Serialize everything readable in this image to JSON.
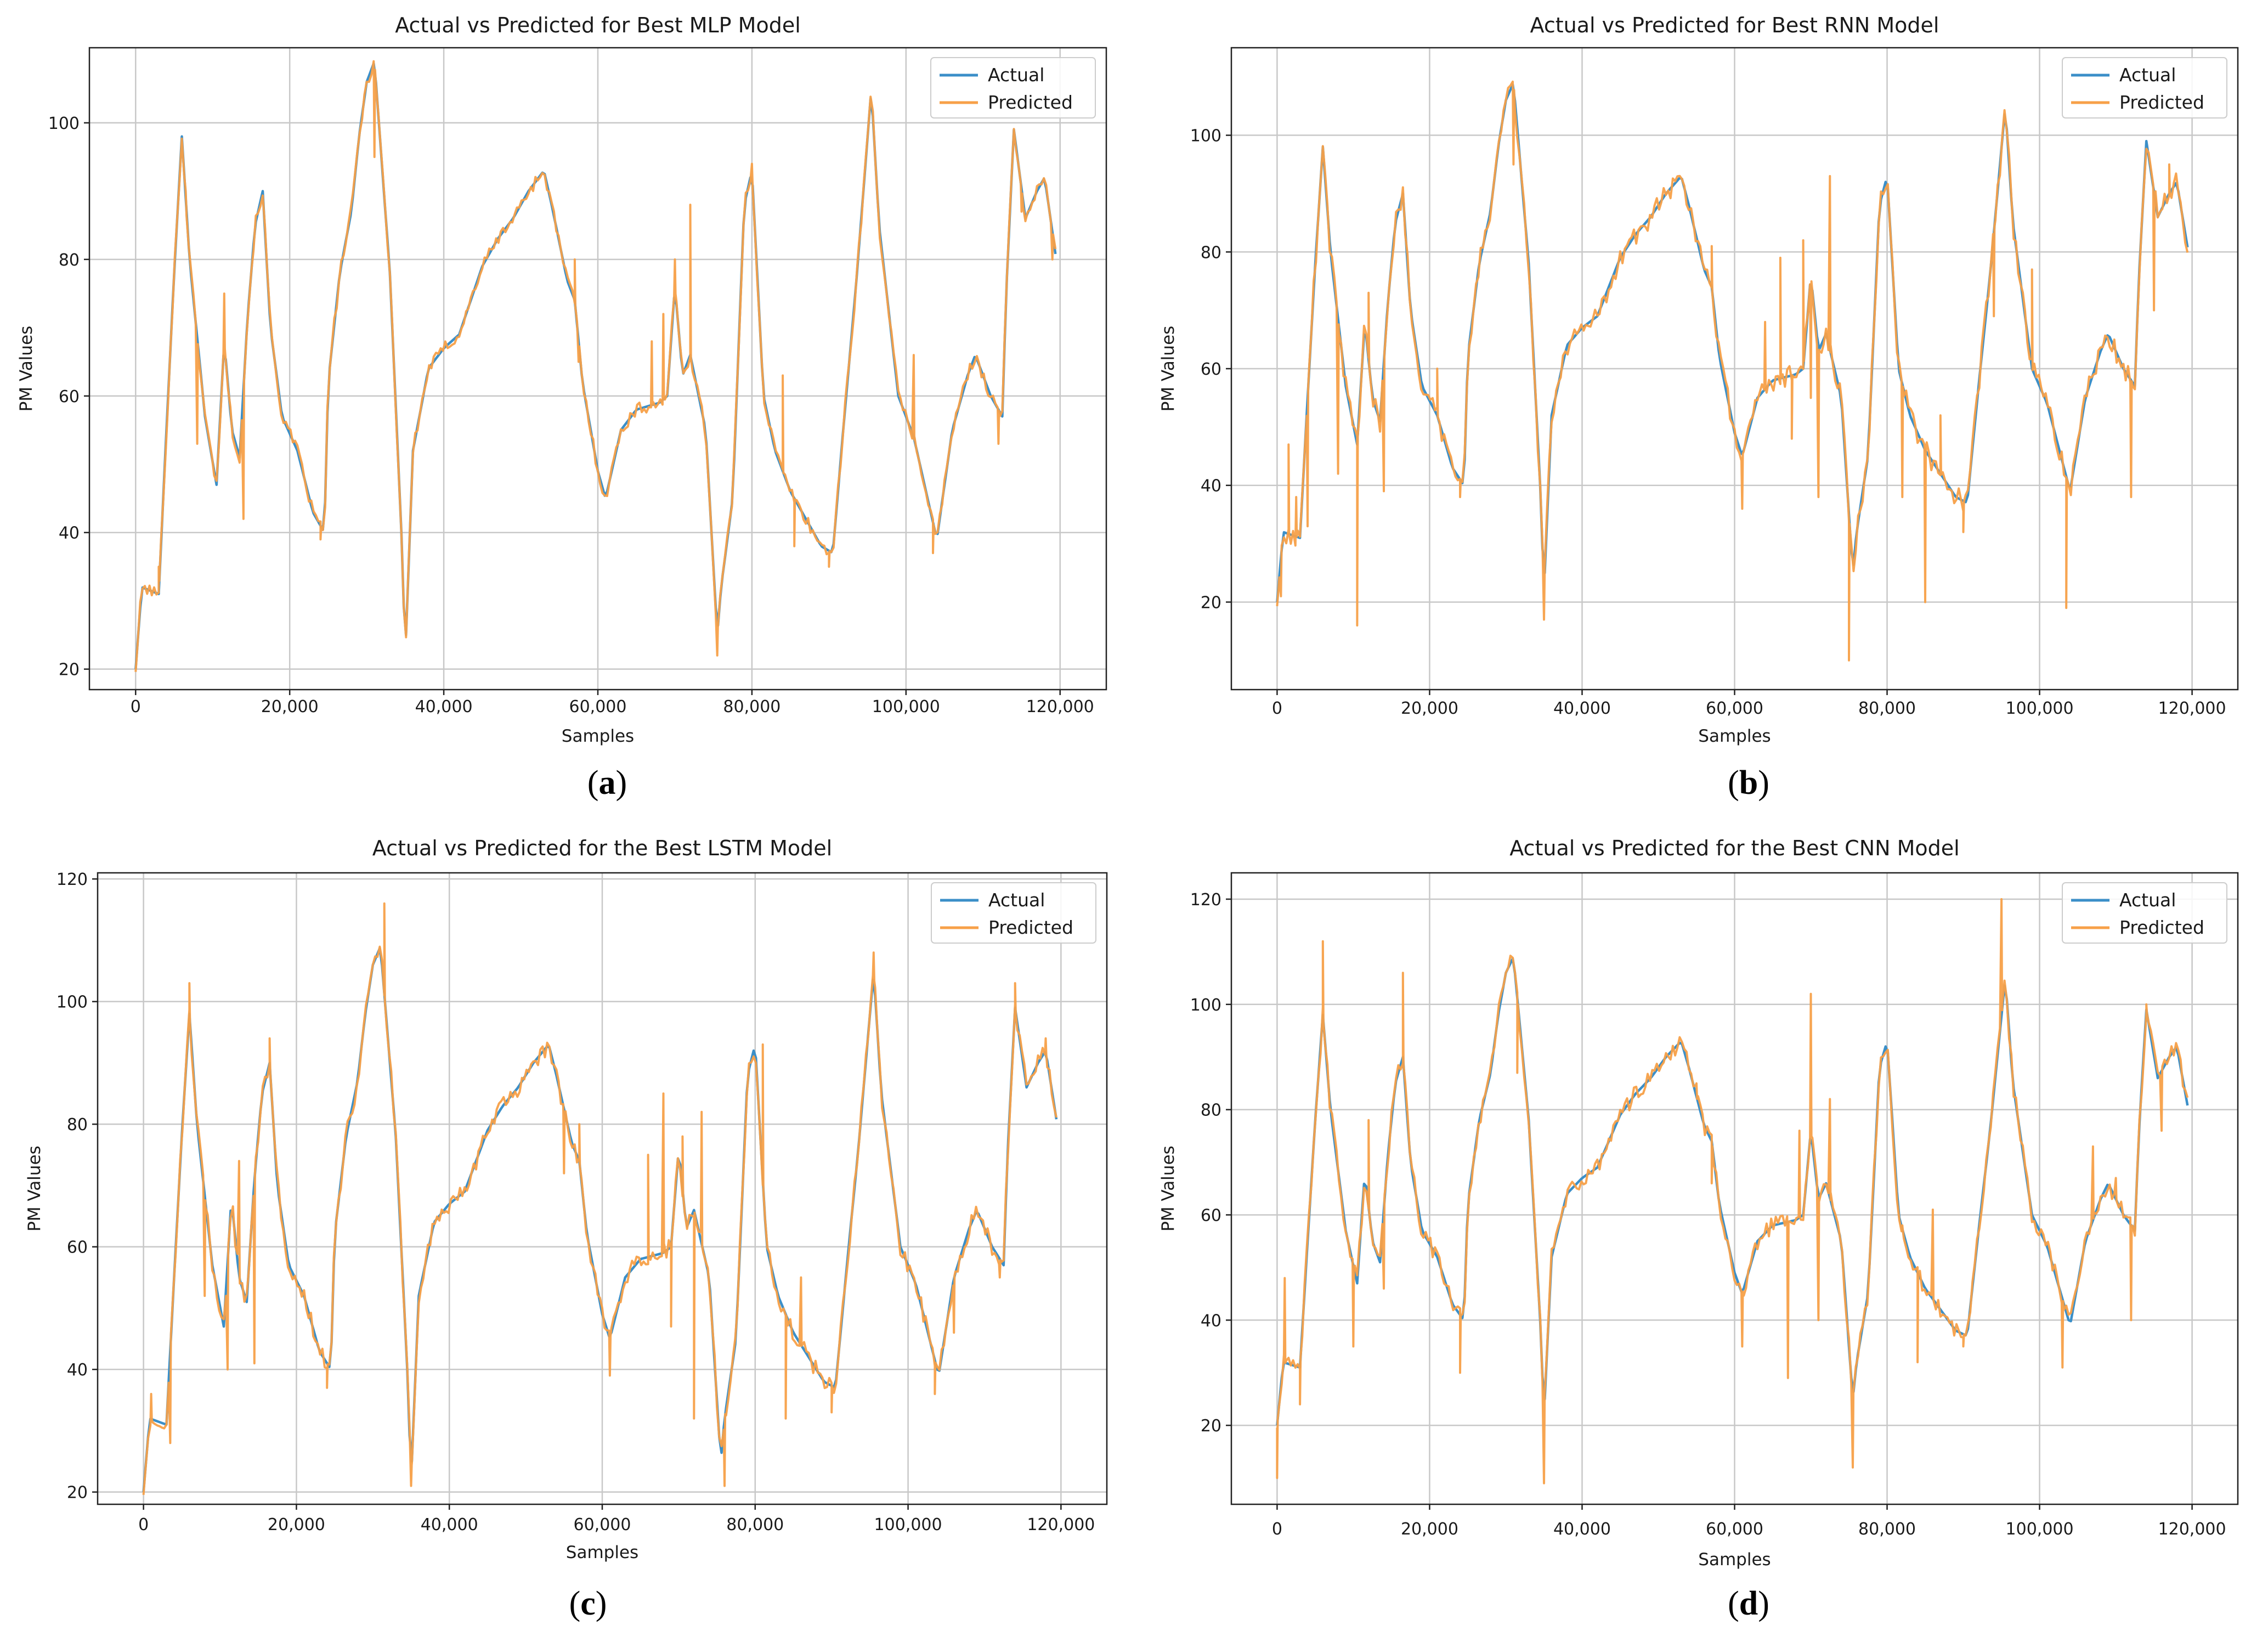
{
  "colors": {
    "actual": "#3b8fc8",
    "predicted": "#f7a048",
    "grid": "#c8c8c8",
    "axis": "#222222"
  },
  "captions": [
    "a",
    "b",
    "c",
    "d"
  ],
  "chart_data": [
    {
      "type": "line",
      "title": "Actual vs Predicted for Best MLP Model",
      "xlabel": "Samples",
      "ylabel": "PM Values",
      "xlim": [
        -6000,
        126000
      ],
      "ylim": [
        17,
        111
      ],
      "xticks": [
        0,
        20000,
        40000,
        60000,
        80000,
        100000,
        120000
      ],
      "xtick_labels": [
        "0",
        "20,000",
        "40,000",
        "60,000",
        "80,000",
        "100,000",
        "120,000"
      ],
      "yticks": [
        20,
        40,
        60,
        80,
        100
      ],
      "ytick_labels": [
        "20",
        "40",
        "60",
        "80",
        "100"
      ],
      "legend": {
        "position": "top-right",
        "entries": [
          "Actual",
          "Predicted"
        ]
      },
      "grid": true,
      "noise": 0.9,
      "spikes": [
        [
          3000,
          35
        ],
        [
          6500,
          90
        ],
        [
          8000,
          53
        ],
        [
          11500,
          75
        ],
        [
          14000,
          42
        ],
        [
          24000,
          39
        ],
        [
          31000,
          95
        ],
        [
          57000,
          80
        ],
        [
          57500,
          65
        ],
        [
          67000,
          68
        ],
        [
          68500,
          72
        ],
        [
          70000,
          80
        ],
        [
          72000,
          88
        ],
        [
          75500,
          22
        ],
        [
          80000,
          94
        ],
        [
          84000,
          63
        ],
        [
          85500,
          38
        ],
        [
          90000,
          35
        ],
        [
          101000,
          66
        ],
        [
          103500,
          37
        ],
        [
          112000,
          53
        ],
        [
          115000,
          87
        ],
        [
          119000,
          80
        ]
      ]
    },
    {
      "type": "line",
      "title": "Actual vs Predicted for Best RNN Model",
      "xlabel": "Samples",
      "ylabel": "PM Values",
      "xlim": [
        -6000,
        126000
      ],
      "ylim": [
        5,
        115
      ],
      "xticks": [
        0,
        20000,
        40000,
        60000,
        80000,
        100000,
        120000
      ],
      "xtick_labels": [
        "0",
        "20,000",
        "40,000",
        "60,000",
        "80,000",
        "100,000",
        "120,000"
      ],
      "yticks": [
        20,
        40,
        60,
        80,
        100
      ],
      "ytick_labels": [
        "20",
        "40",
        "60",
        "80",
        "100"
      ],
      "legend": {
        "position": "top-right",
        "entries": [
          "Actual",
          "Predicted"
        ]
      },
      "grid": true,
      "noise": 1.8,
      "spikes": [
        [
          500,
          21
        ],
        [
          1500,
          47
        ],
        [
          2500,
          38
        ],
        [
          4000,
          33
        ],
        [
          8000,
          42
        ],
        [
          10500,
          16
        ],
        [
          12000,
          73
        ],
        [
          14000,
          39
        ],
        [
          21000,
          60
        ],
        [
          24000,
          38
        ],
        [
          31000,
          95
        ],
        [
          35000,
          17
        ],
        [
          57000,
          81
        ],
        [
          61000,
          36
        ],
        [
          64000,
          68
        ],
        [
          66000,
          79
        ],
        [
          67500,
          48
        ],
        [
          69000,
          82
        ],
        [
          70000,
          55
        ],
        [
          71000,
          38
        ],
        [
          72500,
          93
        ],
        [
          75000,
          10
        ],
        [
          82000,
          38
        ],
        [
          85000,
          20
        ],
        [
          87000,
          52
        ],
        [
          90000,
          32
        ],
        [
          94000,
          69
        ],
        [
          99000,
          77
        ],
        [
          103500,
          19
        ],
        [
          112000,
          38
        ],
        [
          115000,
          70
        ],
        [
          117000,
          95
        ]
      ]
    },
    {
      "type": "line",
      "title": "Actual vs Predicted for the Best LSTM Model",
      "xlabel": "Samples",
      "ylabel": "PM Values",
      "xlim": [
        -6000,
        126000
      ],
      "ylim": [
        18,
        121
      ],
      "xticks": [
        0,
        20000,
        40000,
        60000,
        80000,
        100000,
        120000
      ],
      "xtick_labels": [
        "0",
        "20,000",
        "40,000",
        "60,000",
        "80,000",
        "100,000",
        "120,000"
      ],
      "yticks": [
        20,
        40,
        60,
        80,
        100,
        120
      ],
      "ytick_labels": [
        "20",
        "40",
        "60",
        "80",
        "100",
        "120"
      ],
      "legend": {
        "position": "top-right",
        "entries": [
          "Actual",
          "Predicted"
        ]
      },
      "grid": true,
      "noise": 1.4,
      "spikes": [
        [
          1000,
          36
        ],
        [
          3500,
          28
        ],
        [
          6000,
          103
        ],
        [
          8000,
          52
        ],
        [
          11000,
          40
        ],
        [
          12500,
          74
        ],
        [
          14500,
          41
        ],
        [
          16500,
          94
        ],
        [
          24000,
          37
        ],
        [
          31500,
          116
        ],
        [
          35000,
          21
        ],
        [
          55000,
          72
        ],
        [
          57000,
          80
        ],
        [
          61000,
          39
        ],
        [
          66000,
          75
        ],
        [
          68000,
          85
        ],
        [
          69000,
          47
        ],
        [
          70500,
          78
        ],
        [
          72000,
          32
        ],
        [
          73000,
          82
        ],
        [
          76000,
          21
        ],
        [
          81000,
          93
        ],
        [
          84000,
          32
        ],
        [
          86000,
          55
        ],
        [
          90000,
          33
        ],
        [
          95500,
          108
        ],
        [
          103500,
          36
        ],
        [
          106000,
          46
        ],
        [
          112000,
          55
        ],
        [
          114000,
          103
        ],
        [
          118000,
          94
        ]
      ]
    },
    {
      "type": "line",
      "title": "Actual vs Predicted for the Best CNN Model",
      "xlabel": "Samples",
      "ylabel": "PM Values",
      "xlim": [
        -6000,
        126000
      ],
      "ylim": [
        5,
        125
      ],
      "xticks": [
        0,
        20000,
        40000,
        60000,
        80000,
        100000,
        120000
      ],
      "xtick_labels": [
        "0",
        "20,000",
        "40,000",
        "60,000",
        "80,000",
        "100,000",
        "120,000"
      ],
      "yticks": [
        20,
        40,
        60,
        80,
        100,
        120
      ],
      "ytick_labels": [
        "20",
        "40",
        "60",
        "80",
        "100",
        "120"
      ],
      "legend": {
        "position": "top-right",
        "entries": [
          "Actual",
          "Predicted"
        ]
      },
      "grid": true,
      "noise": 1.6,
      "spikes": [
        [
          0,
          10
        ],
        [
          1000,
          48
        ],
        [
          3000,
          24
        ],
        [
          6000,
          112
        ],
        [
          10000,
          35
        ],
        [
          12000,
          78
        ],
        [
          14000,
          46
        ],
        [
          16500,
          106
        ],
        [
          24000,
          30
        ],
        [
          31500,
          87
        ],
        [
          35000,
          9
        ],
        [
          55000,
          85
        ],
        [
          57000,
          66
        ],
        [
          61000,
          35
        ],
        [
          67000,
          29
        ],
        [
          68500,
          76
        ],
        [
          70000,
          102
        ],
        [
          71000,
          40
        ],
        [
          72500,
          82
        ],
        [
          75500,
          12
        ],
        [
          82000,
          58
        ],
        [
          84000,
          32
        ],
        [
          86000,
          61
        ],
        [
          90000,
          35
        ],
        [
          95000,
          120
        ],
        [
          103000,
          31
        ],
        [
          107000,
          73
        ],
        [
          110000,
          67
        ],
        [
          112000,
          40
        ],
        [
          114000,
          100
        ],
        [
          116000,
          76
        ]
      ]
    }
  ]
}
